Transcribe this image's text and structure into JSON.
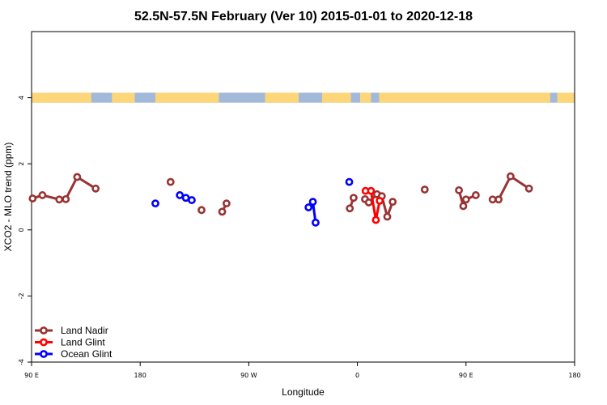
{
  "chart_data": {
    "type": "scatter",
    "title": "52.5N-57.5N February (Ver 10)   2015-01-01 to 2020-12-18",
    "xlabel": "Longitude",
    "ylabel": "XCO2 - MLO trend (ppm)",
    "xlim": [
      0,
      1000
    ],
    "ylim": [
      -4,
      6
    ],
    "x_ticks": [
      {
        "value": 0,
        "label": "90 E"
      },
      {
        "value": 200,
        "label": "180"
      },
      {
        "value": 400,
        "label": "90 W"
      },
      {
        "value": 600,
        "label": "0"
      },
      {
        "value": 800,
        "label": "90 E"
      },
      {
        "value": 1000,
        "label": "180"
      }
    ],
    "y_ticks": [
      {
        "value": -4,
        "label": "-4"
      },
      {
        "value": -2,
        "label": "-2"
      },
      {
        "value": 0,
        "label": "0"
      },
      {
        "value": 2,
        "label": "2"
      },
      {
        "value": 4,
        "label": "4"
      }
    ],
    "land_band": {
      "ymin": 3.85,
      "ymax": 4.15,
      "land_color": "#fdd67a",
      "ocean_color": "#a3b9d9"
    },
    "series": [
      {
        "name": "Land Nadir",
        "color": "#993333",
        "points": [
          {
            "x": 2,
            "y": 0.95,
            "break": false
          },
          {
            "x": 20,
            "y": 1.05,
            "break": false
          },
          {
            "x": 51,
            "y": 0.92,
            "break": false
          },
          {
            "x": 63,
            "y": 0.93,
            "break": false
          },
          {
            "x": 84,
            "y": 1.6,
            "break": false
          },
          {
            "x": 118,
            "y": 1.25,
            "break": false
          },
          {
            "x": 256,
            "y": 1.45,
            "break": true
          },
          {
            "x": 313,
            "y": 0.6,
            "break": true
          },
          {
            "x": 351,
            "y": 0.55,
            "break": true
          },
          {
            "x": 359,
            "y": 0.8,
            "break": false
          },
          {
            "x": 586,
            "y": 0.65,
            "break": true
          },
          {
            "x": 593,
            "y": 0.97,
            "break": false
          },
          {
            "x": 614,
            "y": 0.93,
            "break": true
          },
          {
            "x": 621,
            "y": 0.83,
            "break": false
          },
          {
            "x": 636,
            "y": 1.08,
            "break": false
          },
          {
            "x": 645,
            "y": 1.02,
            "break": false
          },
          {
            "x": 655,
            "y": 0.4,
            "break": false
          },
          {
            "x": 665,
            "y": 0.85,
            "break": false
          },
          {
            "x": 724,
            "y": 1.22,
            "break": true
          },
          {
            "x": 787,
            "y": 1.2,
            "break": true
          },
          {
            "x": 795,
            "y": 0.72,
            "break": false
          },
          {
            "x": 800,
            "y": 0.92,
            "break": false
          },
          {
            "x": 818,
            "y": 1.05,
            "break": false
          },
          {
            "x": 849,
            "y": 0.92,
            "break": true
          },
          {
            "x": 860,
            "y": 0.92,
            "break": false
          },
          {
            "x": 882,
            "y": 1.62,
            "break": false
          },
          {
            "x": 916,
            "y": 1.25,
            "break": false
          }
        ]
      },
      {
        "name": "Land Glint",
        "color": "#ff0000",
        "points": [
          {
            "x": 615,
            "y": 1.18,
            "break": false
          },
          {
            "x": 625,
            "y": 1.18,
            "break": false
          },
          {
            "x": 634,
            "y": 0.3,
            "break": false
          },
          {
            "x": 641,
            "y": 0.88,
            "break": false
          }
        ]
      },
      {
        "name": "Ocean Glint",
        "color": "#0000ff",
        "points": [
          {
            "x": 228,
            "y": 0.8,
            "break": false
          },
          {
            "x": 273,
            "y": 1.05,
            "break": true
          },
          {
            "x": 284,
            "y": 0.97,
            "break": false
          },
          {
            "x": 295,
            "y": 0.9,
            "break": false
          },
          {
            "x": 510,
            "y": 0.68,
            "break": true
          },
          {
            "x": 518,
            "y": 0.85,
            "break": false
          },
          {
            "x": 523,
            "y": 0.22,
            "break": false
          },
          {
            "x": 585,
            "y": 1.45,
            "break": true
          }
        ]
      }
    ]
  }
}
